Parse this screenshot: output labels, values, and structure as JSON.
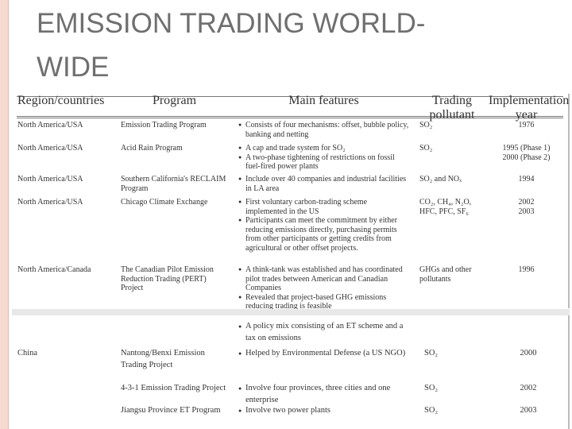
{
  "header": {
    "title": [
      "EMISSION TRADING WORLD-",
      "WIDE"
    ]
  },
  "table": {
    "header": [
      "Region/countries",
      "Program",
      "Main features",
      "Trading pollutant",
      "Implementation year"
    ],
    "rows": [
      {
        "region": "North America/USA",
        "program": "Emission Trading Program",
        "features": [
          "Consists of four mechanisms: offset, bubble policy, banking and netting"
        ],
        "pollutant": "SO₂",
        "year": [
          "1976"
        ]
      },
      {
        "region": "North America/USA",
        "program": "Acid Rain Program",
        "features": [
          "A cap and trade system for SO₂",
          "A two-phase tightening of restrictions on fossil fuel-fired power plants"
        ],
        "pollutant": "SO₂",
        "year": [
          "1995 (Phase 1)",
          "2000 (Phase 2)"
        ]
      },
      {
        "region": "North America/USA",
        "program": "Southern California's RECLAIM Program",
        "features": [
          "Include over 40 companies and industrial facilities in LA area"
        ],
        "pollutant": "SO₂ and NOₓ",
        "year": [
          "1994"
        ]
      },
      {
        "region": "North America/USA",
        "program": "Chicago Climate Exchange",
        "features": [
          "First voluntary carbon-trading scheme implemented in the US",
          "Participants can meet the commitment by either reducing emissions directly, purchasing permits from other participants or getting credits from agricultural or other offset projects."
        ],
        "pollutant": "CO₂, CH₄, N₂O, HFC, PFC, SF₆",
        "year": [
          "2002",
          "2003"
        ]
      },
      {
        "region": "North America/Canada",
        "program": "The Canadian Pilot Emission Reduction Trading (PERT) Project",
        "features": [
          "A think-tank was established and has coordinated pilot trades between American and Canadian Companies",
          "Revealed that project-based GHG emissions reducing trading is feasible"
        ],
        "pollutant": "GHGs and other pollutants",
        "year": [
          "1996"
        ]
      },
      {
        "features": [
          "A policy mix consisting of an ET scheme and a tax on emissions"
        ]
      },
      {
        "region": "China",
        "program": "Nantong/Benxi Emission Trading Project",
        "features": [
          "Helped by Environmental Defense (a US NGO)"
        ],
        "pollutant": "SO₂",
        "year": [
          "2000"
        ]
      },
      {
        "program": "4-3-1 Emission Trading Project",
        "features": [
          "Involve four provinces, three cities and one enterprise"
        ],
        "pollutant": "SO₂",
        "year": [
          "2002"
        ]
      },
      {
        "program": "Jiangsu Province ET Program",
        "features": [
          "Involve two power plants"
        ],
        "pollutant": "SO₂",
        "year": [
          "2003"
        ]
      }
    ]
  }
}
